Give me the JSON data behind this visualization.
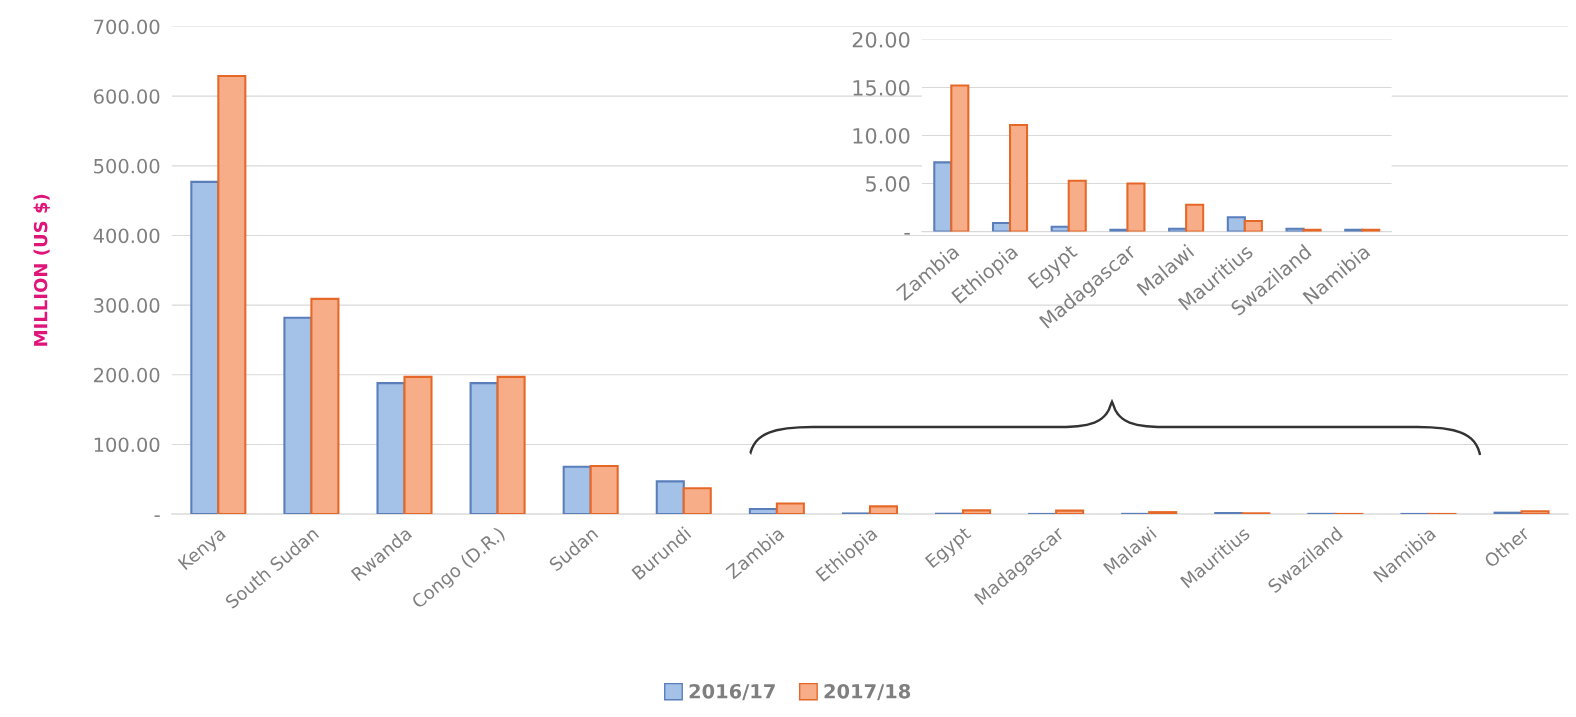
{
  "chart_data": [
    {
      "type": "bar",
      "ylabel": "MILLION (US $)",
      "categories": [
        "Kenya",
        "South Sudan",
        "Rwanda",
        "Congo (D.R.)",
        "Sudan",
        "Burundi",
        "Zambia",
        "Ethiopia",
        "Egypt",
        "Madagascar",
        "Malawi",
        "Mauritius",
        "Swaziland",
        "Namibia",
        "Other"
      ],
      "series": [
        {
          "name": "2016/17",
          "color": "#a4c2e8",
          "values": [
            477,
            282,
            188,
            188,
            68,
            47,
            7.2,
            0.9,
            0.5,
            0.2,
            0.3,
            1.5,
            0.3,
            0.2,
            2
          ]
        },
        {
          "name": "2017/18",
          "color": "#f7ae88",
          "values": [
            629,
            309,
            197,
            197,
            69,
            37,
            15.2,
            11.1,
            5.3,
            5.0,
            2.8,
            1.1,
            0.2,
            0.2,
            4
          ]
        }
      ],
      "ylim": [
        0,
        700
      ],
      "yticks": [
        {
          "value": 0,
          "label": "-"
        },
        {
          "value": 100,
          "label": "100.00"
        },
        {
          "value": 200,
          "label": "200.00"
        },
        {
          "value": 300,
          "label": "300.00"
        },
        {
          "value": 400,
          "label": "400.00"
        },
        {
          "value": 500,
          "label": "500.00"
        },
        {
          "value": 600,
          "label": "600.00"
        },
        {
          "value": 700,
          "label": "700.00"
        }
      ],
      "grid": "y",
      "legend": "bottom"
    },
    {
      "type": "bar",
      "categories": [
        "Zambia",
        "Ethiopia",
        "Egypt",
        "Madagascar",
        "Malawi",
        "Mauritius",
        "Swaziland",
        "Namibia"
      ],
      "series": [
        {
          "color": "#a4c2e8",
          "values": [
            7.2,
            0.9,
            0.5,
            0.2,
            0.3,
            1.5,
            0.3,
            0.2
          ]
        },
        {
          "color": "#f7ae88",
          "values": [
            15.2,
            11.1,
            5.3,
            5.0,
            2.8,
            1.1,
            0.2,
            0.2
          ]
        }
      ],
      "ylim": [
        0,
        20
      ],
      "yticks": [
        {
          "value": 0,
          "label": "-"
        },
        {
          "value": 5,
          "label": "5.00"
        },
        {
          "value": 10,
          "label": "10.00"
        },
        {
          "value": 15,
          "label": "15.00"
        },
        {
          "value": 20,
          "label": "20.00"
        }
      ],
      "grid": "y"
    }
  ]
}
